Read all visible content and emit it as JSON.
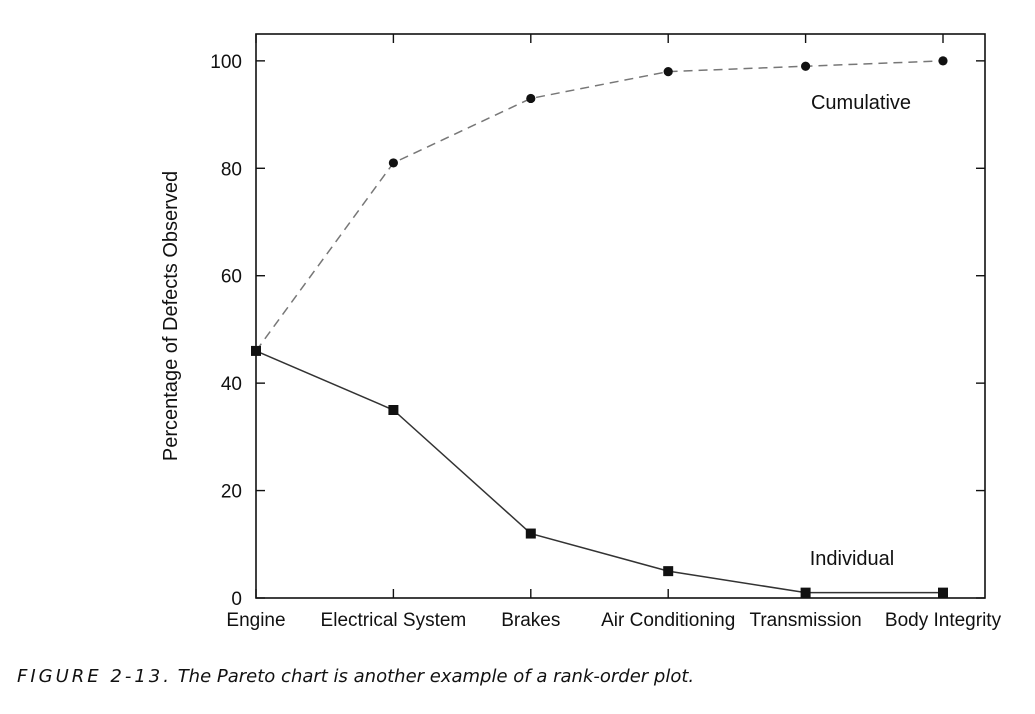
{
  "chart_data": {
    "type": "line",
    "categories": [
      "Engine",
      "Electrical System",
      "Brakes",
      "Air Conditioning",
      "Transmission",
      "Body Integrity"
    ],
    "series": [
      {
        "name": "Cumulative",
        "values": [
          46,
          81,
          93,
          98,
          99,
          100
        ],
        "marker": "circle",
        "line_style": "dashed",
        "color": "#777777"
      },
      {
        "name": "Individual",
        "values": [
          46,
          35,
          12,
          5,
          1,
          1
        ],
        "marker": "square",
        "line_style": "solid",
        "color": "#333333"
      }
    ],
    "ylabel": "Percentage of Defects Observed",
    "xlabel": "",
    "ylim": [
      0,
      105
    ],
    "yticks": [
      0,
      20,
      40,
      60,
      80,
      100
    ],
    "grid": false,
    "series_labels_on_plot": true
  },
  "caption": {
    "prefix": "FIGURE 2-13.",
    "text": " The Pareto chart is another example of a rank-order plot."
  }
}
